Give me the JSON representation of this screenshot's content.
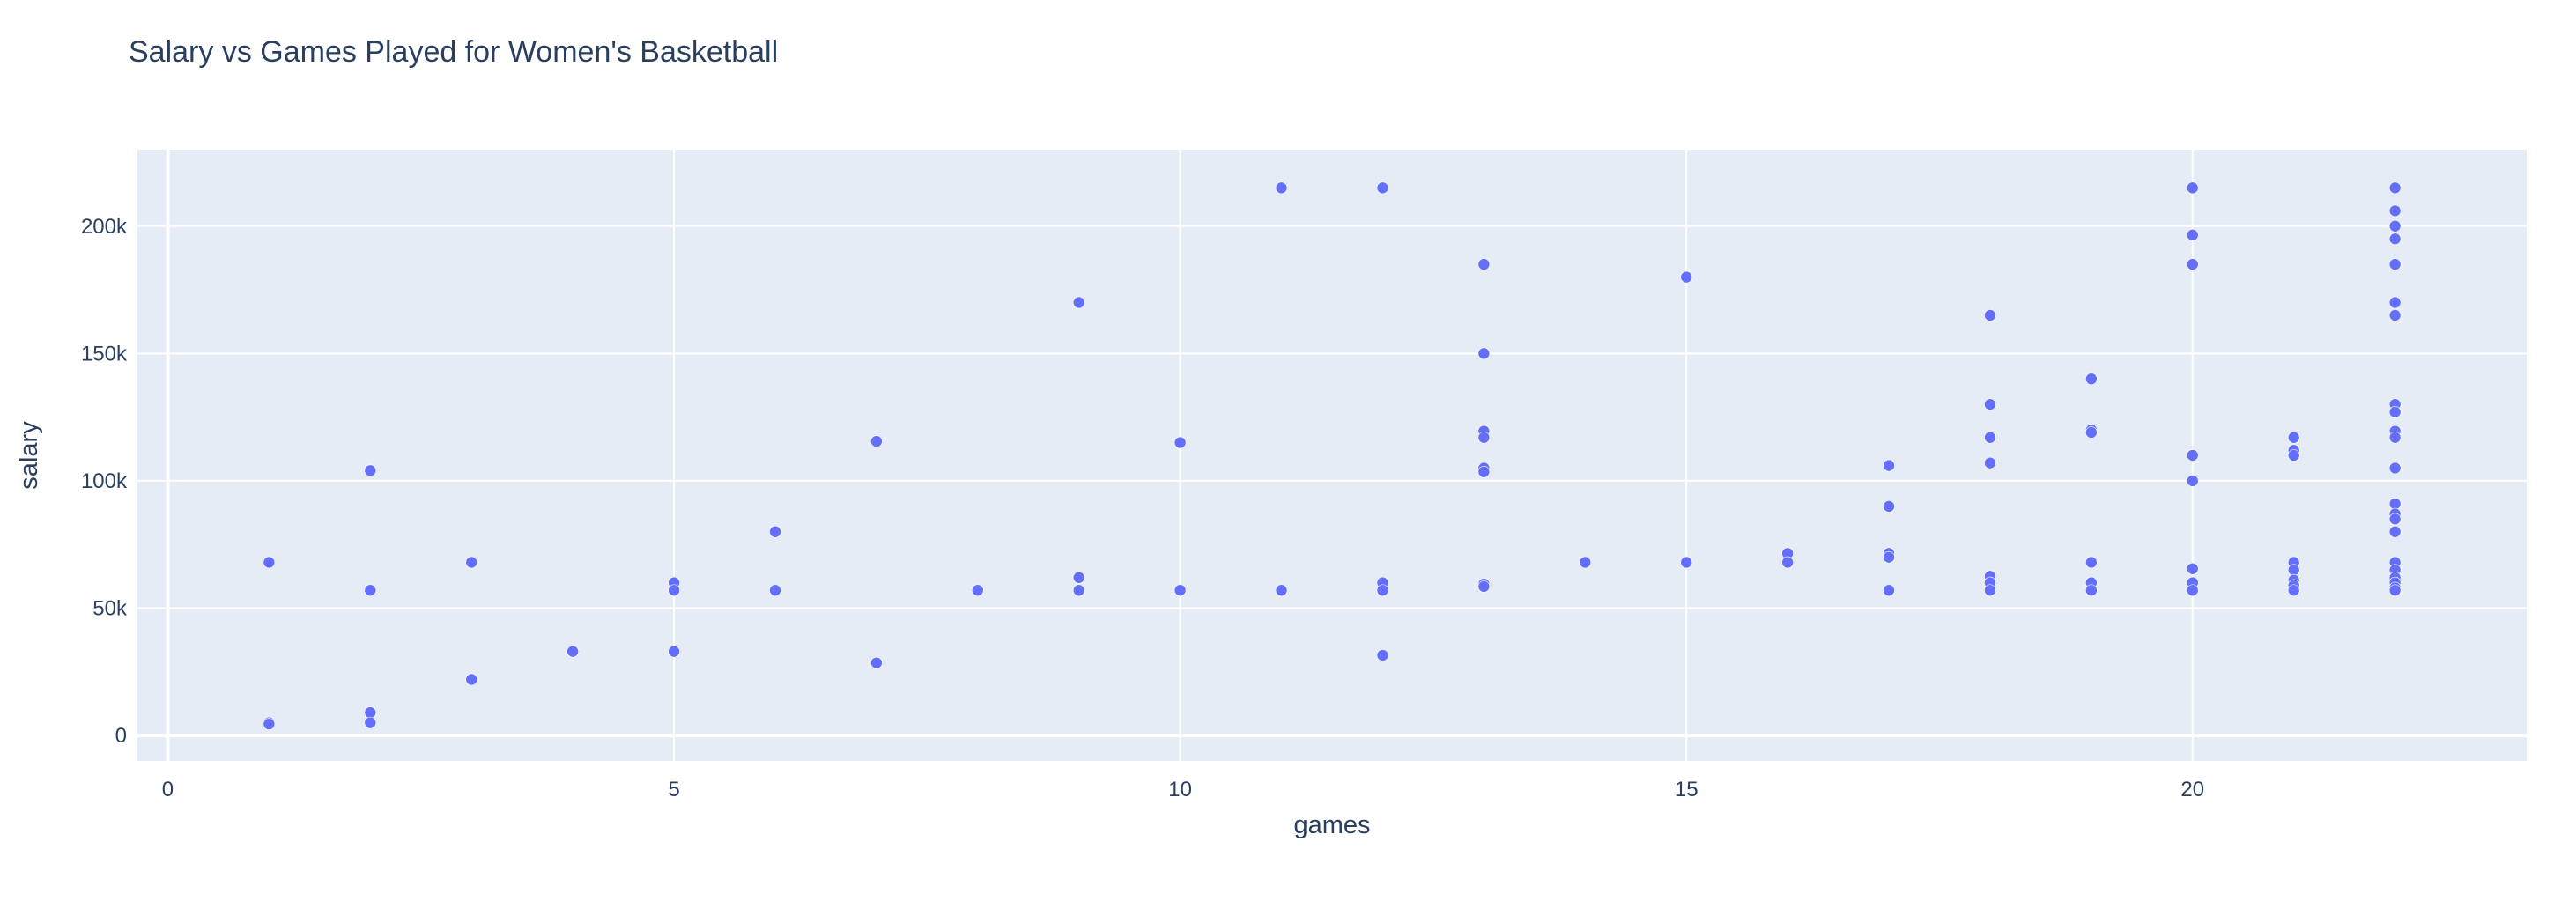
{
  "chart_data": {
    "type": "scatter",
    "title": "Salary vs Games Played for Women's Basketball",
    "xlabel": "games",
    "ylabel": "salary",
    "xlim": [
      -0.3,
      23.3
    ],
    "ylim": [
      -10000,
      230000
    ],
    "x_ticks": [
      0,
      5,
      10,
      15,
      20
    ],
    "x_tick_labels": [
      "0",
      "5",
      "10",
      "15",
      "20"
    ],
    "y_ticks": [
      0,
      50000,
      100000,
      150000,
      200000
    ],
    "y_tick_labels": [
      "0",
      "50k",
      "100k",
      "150k",
      "200k"
    ],
    "grid": true,
    "colors": {
      "plot_background": "#e5ecf6",
      "grid": "#ffffff",
      "marker": "#636efa",
      "text": "#2a3f5f"
    },
    "points": [
      [
        1,
        68000
      ],
      [
        1,
        5000
      ],
      [
        1,
        4500
      ],
      [
        2,
        104000
      ],
      [
        2,
        57000
      ],
      [
        2,
        9000
      ],
      [
        2,
        5000
      ],
      [
        3,
        68000
      ],
      [
        3,
        22000
      ],
      [
        4,
        33000
      ],
      [
        5,
        60000
      ],
      [
        5,
        57000
      ],
      [
        5,
        33000
      ],
      [
        6,
        80000
      ],
      [
        6,
        57000
      ],
      [
        7,
        115500
      ],
      [
        7,
        28500
      ],
      [
        8,
        57000
      ],
      [
        9,
        170000
      ],
      [
        9,
        62000
      ],
      [
        9,
        57000
      ],
      [
        10,
        115000
      ],
      [
        10,
        57000
      ],
      [
        11,
        215000
      ],
      [
        11,
        57000
      ],
      [
        12,
        215000
      ],
      [
        12,
        60000
      ],
      [
        12,
        57000
      ],
      [
        12,
        31500
      ],
      [
        13,
        185000
      ],
      [
        13,
        150000
      ],
      [
        13,
        119500
      ],
      [
        13,
        117000
      ],
      [
        13,
        105000
      ],
      [
        13,
        103500
      ],
      [
        13,
        59500
      ],
      [
        13,
        58500
      ],
      [
        14,
        68000
      ],
      [
        15,
        180000
      ],
      [
        15,
        68000
      ],
      [
        16,
        71500
      ],
      [
        16,
        68000
      ],
      [
        17,
        106000
      ],
      [
        17,
        90000
      ],
      [
        17,
        71500
      ],
      [
        17,
        70000
      ],
      [
        17,
        57000
      ],
      [
        18,
        165000
      ],
      [
        18,
        130000
      ],
      [
        18,
        117000
      ],
      [
        18,
        107000
      ],
      [
        18,
        62500
      ],
      [
        18,
        60000
      ],
      [
        18,
        57000
      ],
      [
        19,
        140000
      ],
      [
        19,
        120000
      ],
      [
        19,
        119000
      ],
      [
        19,
        68000
      ],
      [
        19,
        60000
      ],
      [
        19,
        57000
      ],
      [
        20,
        215000
      ],
      [
        20,
        196500
      ],
      [
        20,
        185000
      ],
      [
        20,
        110000
      ],
      [
        20,
        100000
      ],
      [
        20,
        65500
      ],
      [
        20,
        60000
      ],
      [
        20,
        57000
      ],
      [
        21,
        117000
      ],
      [
        21,
        112000
      ],
      [
        21,
        110000
      ],
      [
        21,
        68000
      ],
      [
        21,
        65000
      ],
      [
        21,
        61000
      ],
      [
        21,
        59000
      ],
      [
        21,
        57000
      ],
      [
        22,
        215000
      ],
      [
        22,
        206000
      ],
      [
        22,
        200000
      ],
      [
        22,
        195000
      ],
      [
        22,
        185000
      ],
      [
        22,
        170000
      ],
      [
        22,
        165000
      ],
      [
        22,
        130000
      ],
      [
        22,
        127000
      ],
      [
        22,
        119500
      ],
      [
        22,
        117000
      ],
      [
        22,
        105000
      ],
      [
        22,
        91000
      ],
      [
        22,
        87000
      ],
      [
        22,
        85000
      ],
      [
        22,
        80000
      ],
      [
        22,
        68000
      ],
      [
        22,
        65000
      ],
      [
        22,
        62000
      ],
      [
        22,
        60000
      ],
      [
        22,
        58000
      ],
      [
        22,
        57000
      ]
    ]
  }
}
